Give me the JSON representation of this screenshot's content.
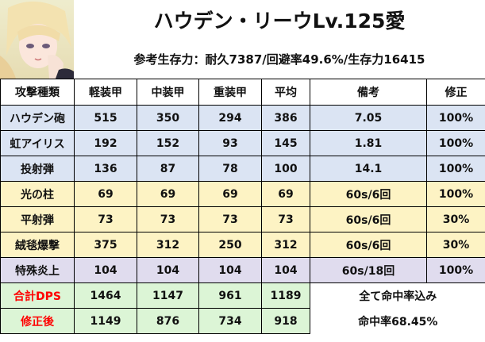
{
  "header": {
    "title": "ハウデン・リーウLv.125愛",
    "subtitle": "参考生存力：耐久7387/回避率49.6%/生存力16415"
  },
  "table": {
    "columns": [
      "攻撃種類",
      "軽装甲",
      "中装甲",
      "重装甲",
      "平均",
      "備考",
      "修正"
    ],
    "rows": [
      {
        "name": "ハウデン砲",
        "light": "515",
        "medium": "350",
        "heavy": "294",
        "avg": "386",
        "note": "7.05",
        "fix": "100%"
      },
      {
        "name": "虹アイリス",
        "light": "192",
        "medium": "152",
        "heavy": "93",
        "avg": "145",
        "note": "1.81",
        "fix": "100%"
      },
      {
        "name": "投射弾",
        "light": "136",
        "medium": "87",
        "heavy": "78",
        "avg": "100",
        "note": "14.1",
        "fix": "100%"
      },
      {
        "name": "光の柱",
        "light": "69",
        "medium": "69",
        "heavy": "69",
        "avg": "69",
        "note": "60s/6回",
        "fix": "100%"
      },
      {
        "name": "平射弾",
        "light": "73",
        "medium": "73",
        "heavy": "73",
        "avg": "73",
        "note": "60s/6回",
        "fix": "30%"
      },
      {
        "name": "絨毯爆撃",
        "light": "375",
        "medium": "312",
        "heavy": "250",
        "avg": "312",
        "note": "60s/6回",
        "fix": "30%"
      },
      {
        "name": "特殊炎上",
        "light": "104",
        "medium": "104",
        "heavy": "104",
        "avg": "104",
        "note": "60s/18回",
        "fix": "100%"
      }
    ],
    "totals": [
      {
        "name": "合計DPS",
        "light": "1464",
        "medium": "1147",
        "heavy": "961",
        "avg": "1189",
        "note": "全て命中率込み"
      },
      {
        "name": "修正後",
        "light": "1149",
        "medium": "876",
        "heavy": "734",
        "avg": "918",
        "note": "命中率68.45%"
      }
    ]
  }
}
